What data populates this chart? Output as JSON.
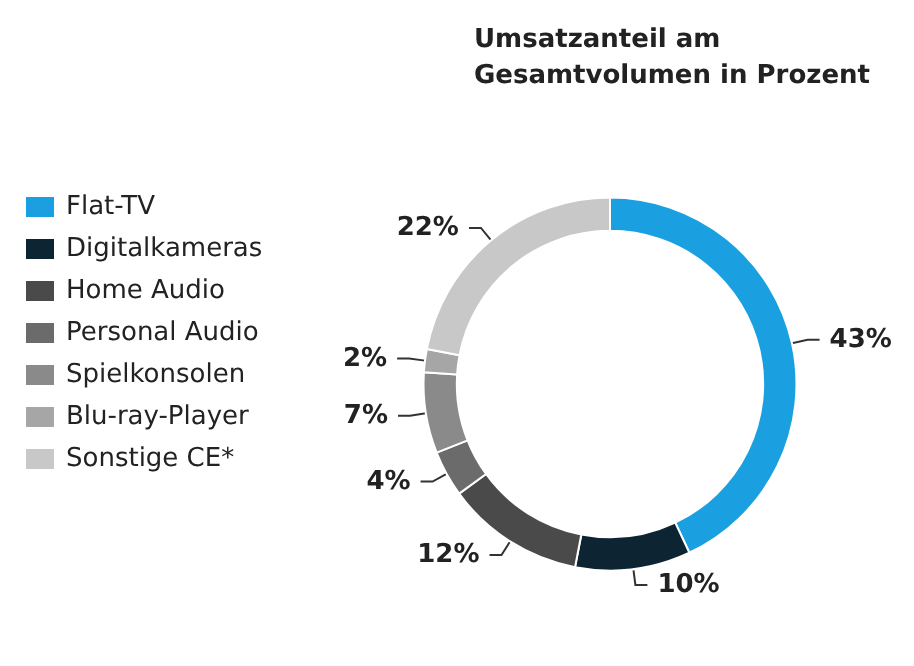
{
  "chart_data": {
    "type": "donut",
    "title": "Umsatzanteil am Gesamtvolumen in Prozent",
    "categories": [
      "Flat-TV",
      "Digitalkameras",
      "Home Audio",
      "Personal Audio",
      "Spielkonsolen",
      "Blu-ray-Player",
      "Sonstige CE*"
    ],
    "values": [
      43,
      10,
      12,
      4,
      7,
      2,
      22
    ],
    "value_labels": [
      "43%",
      "10%",
      "12%",
      "4%",
      "7%",
      "2%",
      "22%"
    ],
    "colors": [
      "#1a9fe0",
      "#0d2533",
      "#4a4a4a",
      "#6b6b6b",
      "#8a8a8a",
      "#a6a6a6",
      "#c8c8c8"
    ],
    "legend": "left"
  }
}
